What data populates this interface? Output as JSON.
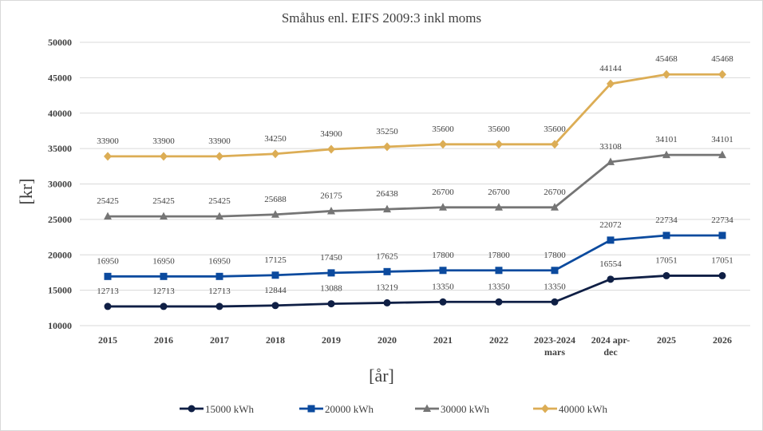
{
  "chart_data": {
    "type": "line",
    "title": "Småhus enl. EIFS 2009:3 inkl moms",
    "xlabel": "[år]",
    "ylabel": "[kr]",
    "categories": [
      "2015",
      "2016",
      "2017",
      "2018",
      "2019",
      "2020",
      "2021",
      "2022",
      "2023-2024 mars",
      "2024 apr-dec",
      "2025",
      "2026"
    ],
    "ylim": [
      10000,
      50000
    ],
    "yticks": [
      10000,
      15000,
      20000,
      25000,
      30000,
      35000,
      40000,
      45000,
      50000
    ],
    "grid": true,
    "legend": "bottom",
    "data_labels": true,
    "series": [
      {
        "name": "15000 kWh",
        "color": "#0f1f45",
        "marker": "circle",
        "values": [
          12713,
          12713,
          12713,
          12844,
          13088,
          13219,
          13350,
          13350,
          13350,
          16554,
          17051,
          17051
        ]
      },
      {
        "name": "20000 kWh",
        "color": "#0b4a9e",
        "marker": "square",
        "values": [
          16950,
          16950,
          16950,
          17125,
          17450,
          17625,
          17800,
          17800,
          17800,
          22072,
          22734,
          22734
        ]
      },
      {
        "name": "30000 kWh",
        "color": "#757575",
        "marker": "triangle",
        "values": [
          25425,
          25425,
          25425,
          25688,
          26175,
          26438,
          26700,
          26700,
          26700,
          33108,
          34101,
          34101
        ]
      },
      {
        "name": "40000 kWh",
        "color": "#dcad55",
        "marker": "diamond",
        "values": [
          33900,
          33900,
          33900,
          34250,
          34900,
          35250,
          35600,
          35600,
          35600,
          44144,
          45468,
          45468
        ]
      }
    ]
  }
}
